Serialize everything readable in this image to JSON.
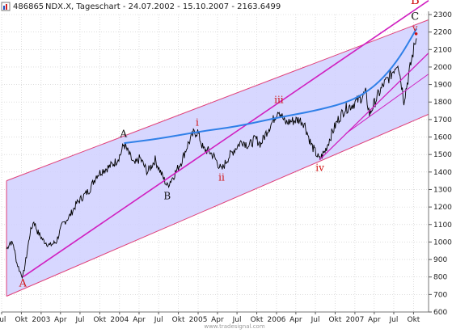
{
  "header": {
    "id_text": "486865",
    "info_text": "NDX.X, Tageschart - 24.07.2002 - 15.10.2007 - 2163.6499"
  },
  "watermark": "www.tradesignal.com",
  "colors": {
    "background": "#ffffff",
    "price": "#000000",
    "channel_fill": "#d0d0ff",
    "channel_border": "#e0407a",
    "trendline": "#d020c0",
    "curve": "#3080e8",
    "wave_red": "#d01010",
    "wave_black": "#111111",
    "grid": "#c8c8c8"
  },
  "chart_data": {
    "type": "line",
    "title": "",
    "xlabel": "",
    "ylabel": "",
    "ylim": [
      600,
      2300
    ],
    "y_ticks": [
      600,
      700,
      800,
      900,
      1000,
      1100,
      1200,
      1300,
      1400,
      1500,
      1600,
      1700,
      1800,
      1900,
      2000,
      2100,
      2200,
      2300
    ],
    "x_ticks": [
      "Jul",
      "Okt",
      "2003",
      "Apr",
      "Jul",
      "Okt",
      "2004",
      "Apr",
      "Jul",
      "Okt",
      "2005",
      "Apr",
      "Jul",
      "Okt",
      "2006",
      "Apr",
      "Jul",
      "Okt",
      "2007",
      "Apr",
      "Jul",
      "Okt"
    ],
    "x_range": [
      "2002-07-01",
      "2007-12-10"
    ],
    "grid": true,
    "series": [
      {
        "values": [
          [
            "2002-07-24",
            960
          ],
          [
            "2002-08-10",
            1000
          ],
          [
            "2002-08-25",
            985
          ],
          [
            "2002-09-10",
            880
          ],
          [
            "2002-09-25",
            830
          ],
          [
            "2002-10-08",
            800
          ],
          [
            "2002-10-25",
            920
          ],
          [
            "2002-11-10",
            1050
          ],
          [
            "2002-11-28",
            1120
          ],
          [
            "2002-12-15",
            1060
          ],
          [
            "2003-01-10",
            1010
          ],
          [
            "2003-02-10",
            980
          ],
          [
            "2003-03-12",
            1000
          ],
          [
            "2003-04-10",
            1100
          ],
          [
            "2003-05-15",
            1150
          ],
          [
            "2003-06-15",
            1220
          ],
          [
            "2003-07-15",
            1260
          ],
          [
            "2003-08-15",
            1300
          ],
          [
            "2003-09-15",
            1380
          ],
          [
            "2003-10-15",
            1410
          ],
          [
            "2003-11-15",
            1430
          ],
          [
            "2003-12-15",
            1460
          ],
          [
            "2004-01-05",
            1500
          ],
          [
            "2004-01-22",
            1560
          ],
          [
            "2004-02-15",
            1500
          ],
          [
            "2004-03-10",
            1440
          ],
          [
            "2004-04-05",
            1480
          ],
          [
            "2004-05-10",
            1400
          ],
          [
            "2004-06-15",
            1470
          ],
          [
            "2004-07-10",
            1400
          ],
          [
            "2004-08-10",
            1320
          ],
          [
            "2004-09-10",
            1380
          ],
          [
            "2004-10-15",
            1460
          ],
          [
            "2004-11-15",
            1560
          ],
          [
            "2004-12-10",
            1620
          ],
          [
            "2004-12-30",
            1630
          ],
          [
            "2005-01-25",
            1530
          ],
          [
            "2005-02-20",
            1520
          ],
          [
            "2005-03-15",
            1490
          ],
          [
            "2005-04-20",
            1410
          ],
          [
            "2005-05-20",
            1480
          ],
          [
            "2005-06-20",
            1530
          ],
          [
            "2005-07-25",
            1580
          ],
          [
            "2005-08-25",
            1550
          ],
          [
            "2005-09-25",
            1590
          ],
          [
            "2005-10-20",
            1560
          ],
          [
            "2005-11-20",
            1640
          ],
          [
            "2005-12-10",
            1680
          ],
          [
            "2006-01-10",
            1760
          ],
          [
            "2006-02-10",
            1680
          ],
          [
            "2006-03-10",
            1690
          ],
          [
            "2006-04-15",
            1700
          ],
          [
            "2006-05-10",
            1680
          ],
          [
            "2006-06-10",
            1560
          ],
          [
            "2006-07-20",
            1470
          ],
          [
            "2006-08-15",
            1520
          ],
          [
            "2006-09-15",
            1620
          ],
          [
            "2006-10-15",
            1700
          ],
          [
            "2006-11-15",
            1760
          ],
          [
            "2006-12-15",
            1780
          ],
          [
            "2007-01-25",
            1820
          ],
          [
            "2007-02-20",
            1850
          ],
          [
            "2007-03-10",
            1730
          ],
          [
            "2007-04-15",
            1830
          ],
          [
            "2007-05-15",
            1900
          ],
          [
            "2007-06-15",
            1950
          ],
          [
            "2007-07-20",
            2030
          ],
          [
            "2007-08-10",
            1870
          ],
          [
            "2007-08-17",
            1810
          ],
          [
            "2007-09-05",
            1930
          ],
          [
            "2007-09-25",
            2060
          ],
          [
            "2007-10-10",
            2150
          ],
          [
            "2007-10-15",
            2164
          ]
        ]
      }
    ],
    "overlays": {
      "channel_upper": [
        [
          "2002-07-24",
          1350
        ],
        [
          "2007-12-10",
          2270
        ]
      ],
      "channel_lower": [
        [
          "2002-07-24",
          690
        ],
        [
          "2007-12-10",
          1730
        ]
      ],
      "trendline_ab": [
        [
          "2002-10-08",
          800
        ],
        [
          "2007-12-10",
          2380
        ]
      ],
      "trendline_iv": [
        [
          "2006-07-20",
          1470
        ],
        [
          "2007-12-10",
          2080
        ]
      ],
      "trendline_low": [
        [
          "2006-11-20",
          1620
        ],
        [
          "2007-12-10",
          1960
        ]
      ],
      "curve": [
        [
          "2004-01-22",
          1565
        ],
        [
          "2004-07-01",
          1590
        ],
        [
          "2005-01-01",
          1630
        ],
        [
          "2005-07-01",
          1660
        ],
        [
          "2006-01-01",
          1710
        ],
        [
          "2006-07-01",
          1750
        ],
        [
          "2006-12-01",
          1800
        ],
        [
          "2007-03-01",
          1860
        ],
        [
          "2007-05-15",
          1940
        ],
        [
          "2007-08-01",
          2060
        ],
        [
          "2007-10-15",
          2220
        ]
      ]
    },
    "annotations": [
      {
        "text": "A",
        "date": "2002-10-08",
        "value": 745,
        "color": "red",
        "size": 13
      },
      {
        "text": "A",
        "date": "2004-01-20",
        "value": 1600,
        "color": "black",
        "size": 12
      },
      {
        "text": "B",
        "date": "2004-08-10",
        "value": 1245,
        "color": "black",
        "size": 12
      },
      {
        "text": "i",
        "date": "2004-12-28",
        "value": 1665,
        "color": "red",
        "size": 12
      },
      {
        "text": "ii",
        "date": "2005-04-20",
        "value": 1350,
        "color": "red",
        "size": 12
      },
      {
        "text": "iii",
        "date": "2006-01-12",
        "value": 1795,
        "color": "red",
        "size": 12
      },
      {
        "text": "iv",
        "date": "2006-07-22",
        "value": 1405,
        "color": "red",
        "size": 12
      },
      {
        "text": "v",
        "date": "2007-10-08",
        "value": 2205,
        "color": "red",
        "size": 11
      },
      {
        "text": "C",
        "date": "2007-10-08",
        "value": 2270,
        "color": "black",
        "size": 13
      },
      {
        "text": "B",
        "date": "2007-10-08",
        "value": 2360,
        "color": "red",
        "size": 15
      }
    ]
  }
}
